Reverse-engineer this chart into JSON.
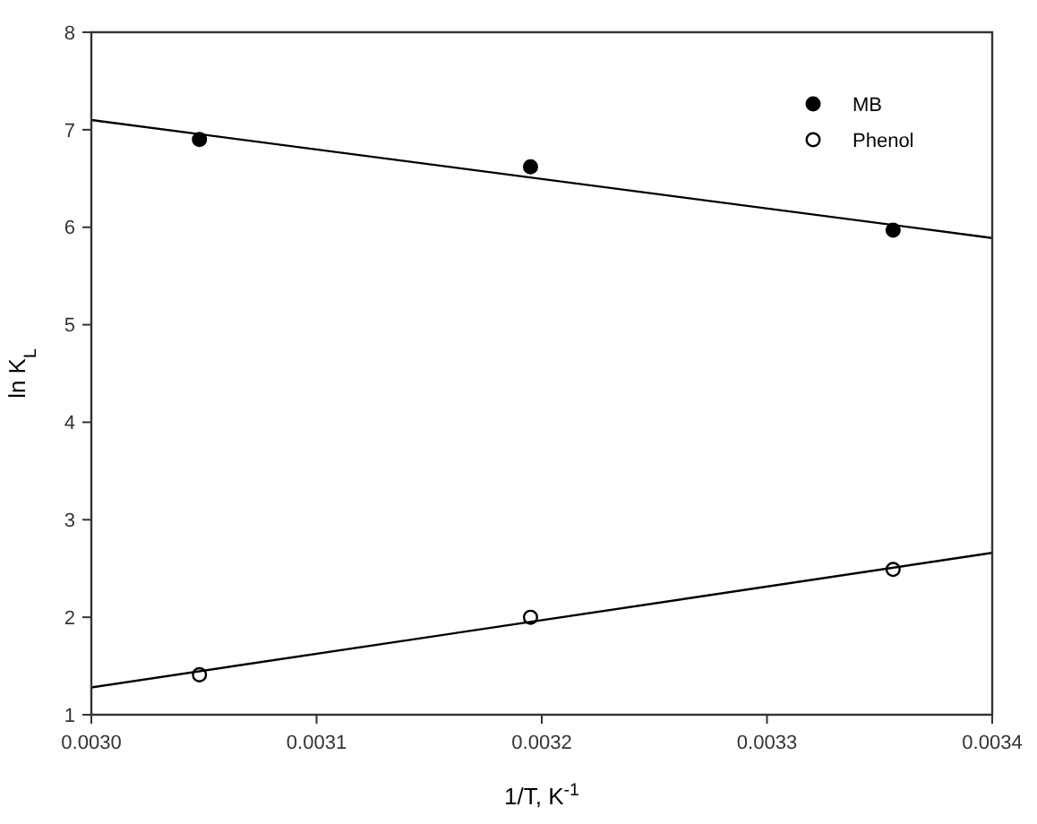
{
  "chart_data": {
    "type": "scatter",
    "xlabel": "1/T, K$^{-1}$",
    "ylabel": "ln K$_{L}$",
    "xlim": [
      0.003,
      0.0034
    ],
    "xticks": [
      {
        "value": 0.003,
        "label": "0.0030"
      },
      0.0031,
      0.0032,
      0.0033,
      0.0034
    ],
    "ylim": [
      1,
      8
    ],
    "yticks": [
      1,
      2,
      3,
      4,
      5,
      6,
      7,
      8
    ],
    "grid": false,
    "legend": "top right",
    "marker": "circle",
    "series": [
      {
        "name": "MB",
        "color": "#000000",
        "x": [
          0.003048,
          0.003195,
          0.003356
        ],
        "values": [
          6.9,
          6.62,
          5.97
        ]
      },
      {
        "name": "Phenol",
        "color": "#ffffff",
        "x": [
          0.003048,
          0.003195,
          0.003356
        ],
        "values": [
          1.41,
          2.0,
          2.49
        ]
      },
      {
        "type": "line",
        "marker": "none",
        "color": "#000000",
        "x": [
          0.003,
          0.0034
        ],
        "values": [
          7.1,
          5.89
        ]
      },
      {
        "type": "line",
        "marker": "none",
        "color": "#000000",
        "x": [
          0.003,
          0.0034
        ],
        "values": [
          1.28,
          2.66
        ]
      }
    ]
  }
}
